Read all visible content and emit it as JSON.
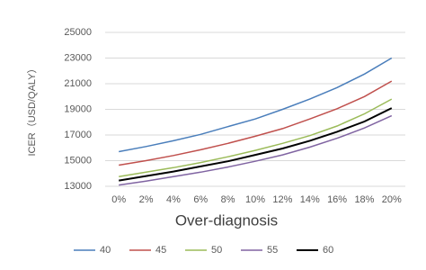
{
  "chart_data": {
    "type": "line",
    "y_label": "ICER（USD/QALY）",
    "x_label": "Over-diagnosis",
    "categories": [
      "0%",
      "2%",
      "4%",
      "6%",
      "8%",
      "10%",
      "12%",
      "14%",
      "16%",
      "18%",
      "20%"
    ],
    "series": [
      {
        "name": "40",
        "color": "#4a7ebb",
        "values": [
          15700,
          16100,
          16550,
          17050,
          17650,
          18250,
          19000,
          19800,
          20700,
          21750,
          23000
        ]
      },
      {
        "name": "45",
        "color": "#c0504d",
        "values": [
          14650,
          15000,
          15400,
          15850,
          16350,
          16900,
          17500,
          18250,
          19050,
          20000,
          21200
        ]
      },
      {
        "name": "50",
        "color": "#9bbb59",
        "values": [
          13750,
          14100,
          14450,
          14850,
          15300,
          15800,
          16350,
          16950,
          17700,
          18650,
          19800
        ]
      },
      {
        "name": "55",
        "color": "#8064a2",
        "values": [
          13100,
          13400,
          13750,
          14100,
          14500,
          14950,
          15450,
          16050,
          16750,
          17550,
          18500
        ]
      },
      {
        "name": "60",
        "color": "#000000",
        "values": [
          13450,
          13800,
          14150,
          14550,
          14950,
          15450,
          15950,
          16550,
          17250,
          18050,
          19100
        ]
      }
    ],
    "ylim": [
      13000,
      25000
    ],
    "yticks": [
      13000,
      15000,
      17000,
      19000,
      21000,
      23000,
      25000
    ],
    "grid": true,
    "legend": "bottom"
  }
}
